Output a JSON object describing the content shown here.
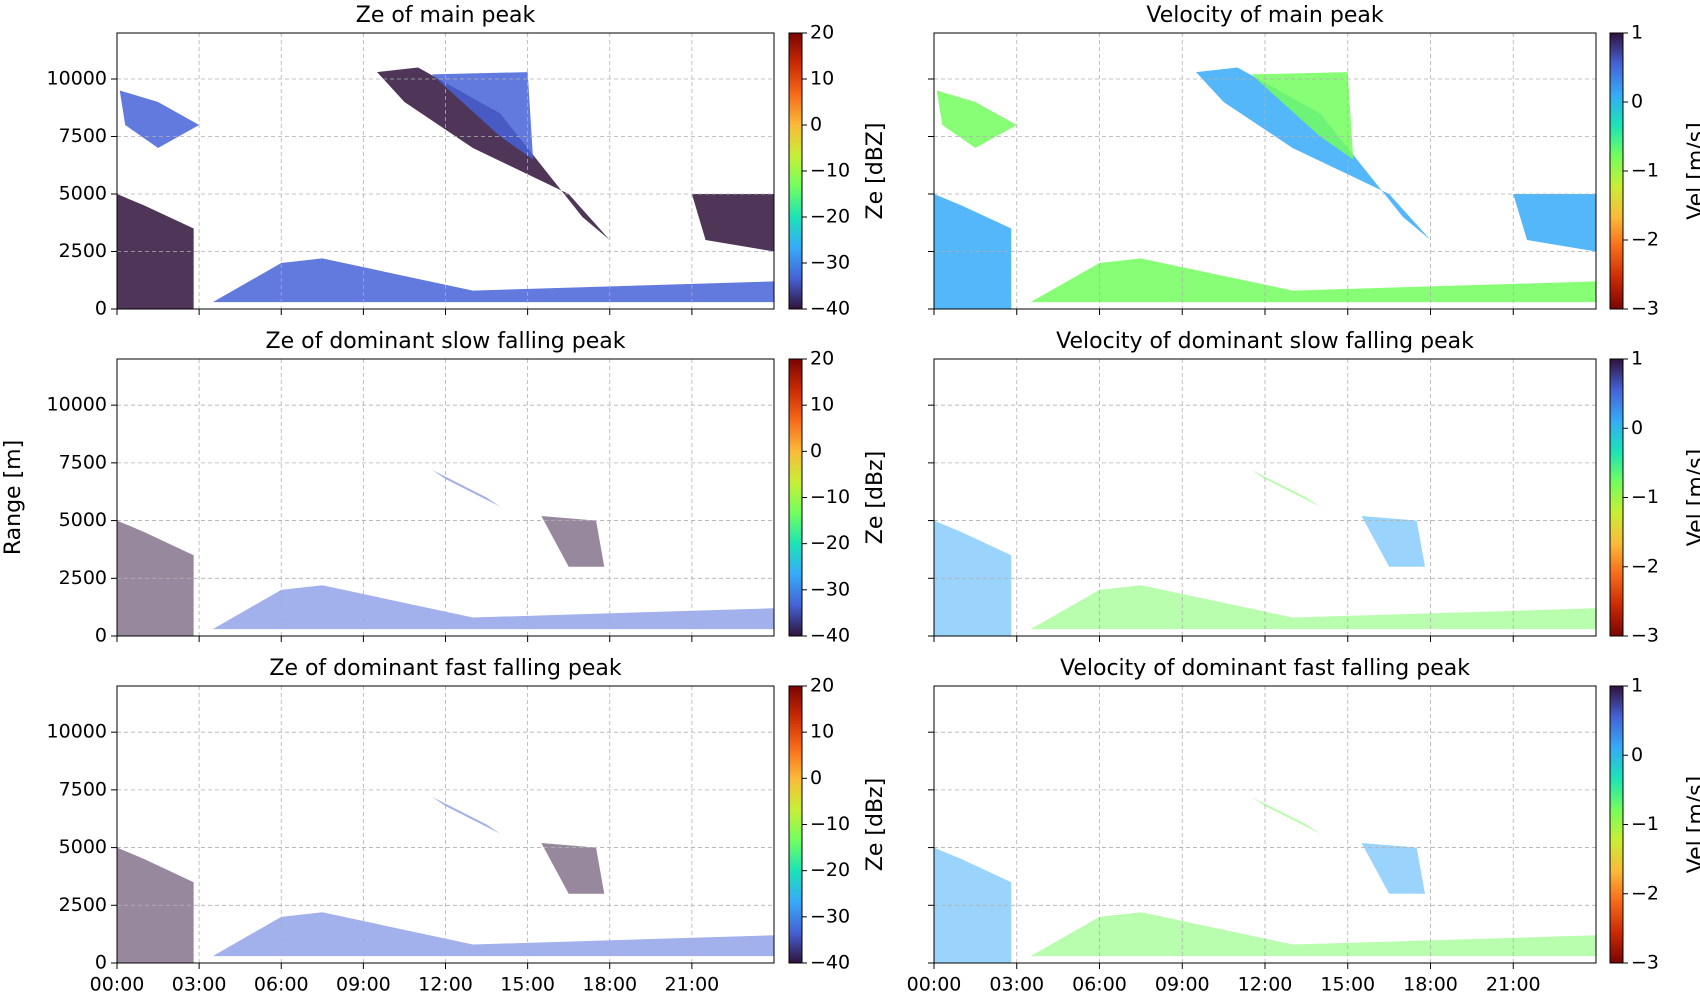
{
  "chart_data": [
    {
      "type": "heatmap",
      "title": "Ze of main peak",
      "colorbar_label": "Ze [dBZ]",
      "colormap": "turbo",
      "clim": [
        -40,
        20
      ],
      "cticks": [
        {
          "value": -40,
          "label": "−40"
        },
        {
          "value": -30,
          "label": "−30"
        },
        {
          "value": -20,
          "label": "−20"
        },
        {
          "value": -10,
          "label": "−10"
        },
        0,
        10,
        20
      ],
      "xlim": [
        0,
        24
      ],
      "xticks": [
        {
          "value": 0,
          "label": "00:00"
        },
        {
          "value": 3,
          "label": "03:00"
        },
        {
          "value": 6,
          "label": "06:00"
        },
        {
          "value": 9,
          "label": "09:00"
        },
        {
          "value": 12,
          "label": "12:00"
        },
        {
          "value": 15,
          "label": "15:00"
        },
        {
          "value": 18,
          "label": "18:00"
        },
        {
          "value": 21,
          "label": "21:00"
        }
      ],
      "xticklabels": false,
      "ylim": [
        0,
        12000
      ],
      "yticks": [
        0,
        2500,
        5000,
        7500,
        10000
      ],
      "yticklabels": true,
      "grid": true
    },
    {
      "type": "heatmap",
      "title": "Velocity of main peak",
      "colorbar_label": "Vel [m/s]",
      "colormap": "turbo_r",
      "clim": [
        -3,
        1
      ],
      "cticks": [
        {
          "value": -3,
          "label": "−3"
        },
        {
          "value": -2,
          "label": "−2"
        },
        {
          "value": -1,
          "label": "−1"
        },
        0,
        1
      ],
      "xlim": [
        0,
        24
      ],
      "xticks": [
        {
          "value": 0,
          "label": "00:00"
        },
        {
          "value": 3,
          "label": "03:00"
        },
        {
          "value": 6,
          "label": "06:00"
        },
        {
          "value": 9,
          "label": "09:00"
        },
        {
          "value": 12,
          "label": "12:00"
        },
        {
          "value": 15,
          "label": "15:00"
        },
        {
          "value": 18,
          "label": "18:00"
        },
        {
          "value": 21,
          "label": "21:00"
        }
      ],
      "xticklabels": false,
      "ylim": [
        0,
        12000
      ],
      "yticks": [
        0,
        2500,
        5000,
        7500,
        10000
      ],
      "yticklabels": false,
      "grid": true
    },
    {
      "type": "heatmap",
      "title": "Ze of dominant slow falling peak",
      "colorbar_label": "Ze [dBz]",
      "colormap": "turbo",
      "ylabel": "Range [m]",
      "clim": [
        -40,
        20
      ],
      "cticks": [
        {
          "value": -40,
          "label": "−40"
        },
        {
          "value": -30,
          "label": "−30"
        },
        {
          "value": -20,
          "label": "−20"
        },
        {
          "value": -10,
          "label": "−10"
        },
        0,
        10,
        20
      ],
      "xlim": [
        0,
        24
      ],
      "xticks": [
        {
          "value": 0,
          "label": "00:00"
        },
        {
          "value": 3,
          "label": "03:00"
        },
        {
          "value": 6,
          "label": "06:00"
        },
        {
          "value": 9,
          "label": "09:00"
        },
        {
          "value": 12,
          "label": "12:00"
        },
        {
          "value": 15,
          "label": "15:00"
        },
        {
          "value": 18,
          "label": "18:00"
        },
        {
          "value": 21,
          "label": "21:00"
        }
      ],
      "xticklabels": false,
      "ylim": [
        0,
        12000
      ],
      "yticks": [
        0,
        2500,
        5000,
        7500,
        10000
      ],
      "yticklabels": true,
      "grid": true
    },
    {
      "type": "heatmap",
      "title": "Velocity of dominant slow falling peak",
      "colorbar_label": "Vel [m/s]",
      "colormap": "turbo_r",
      "clim": [
        -3,
        1
      ],
      "cticks": [
        {
          "value": -3,
          "label": "−3"
        },
        {
          "value": -2,
          "label": "−2"
        },
        {
          "value": -1,
          "label": "−1"
        },
        0,
        1
      ],
      "xlim": [
        0,
        24
      ],
      "xticks": [
        {
          "value": 0,
          "label": "00:00"
        },
        {
          "value": 3,
          "label": "03:00"
        },
        {
          "value": 6,
          "label": "06:00"
        },
        {
          "value": 9,
          "label": "09:00"
        },
        {
          "value": 12,
          "label": "12:00"
        },
        {
          "value": 15,
          "label": "15:00"
        },
        {
          "value": 18,
          "label": "18:00"
        },
        {
          "value": 21,
          "label": "21:00"
        }
      ],
      "xticklabels": false,
      "ylim": [
        0,
        12000
      ],
      "yticks": [
        0,
        2500,
        5000,
        7500,
        10000
      ],
      "yticklabels": false,
      "grid": true
    },
    {
      "type": "heatmap",
      "title": "Ze of dominant fast falling peak",
      "colorbar_label": "Ze [dBz]",
      "colormap": "turbo",
      "clim": [
        -40,
        20
      ],
      "cticks": [
        {
          "value": -40,
          "label": "−40"
        },
        {
          "value": -30,
          "label": "−30"
        },
        {
          "value": -20,
          "label": "−20"
        },
        {
          "value": -10,
          "label": "−10"
        },
        0,
        10,
        20
      ],
      "xlim": [
        0,
        24
      ],
      "xticks": [
        {
          "value": 0,
          "label": "00:00"
        },
        {
          "value": 3,
          "label": "03:00"
        },
        {
          "value": 6,
          "label": "06:00"
        },
        {
          "value": 9,
          "label": "09:00"
        },
        {
          "value": 12,
          "label": "12:00"
        },
        {
          "value": 15,
          "label": "15:00"
        },
        {
          "value": 18,
          "label": "18:00"
        },
        {
          "value": 21,
          "label": "21:00"
        }
      ],
      "xticklabels": true,
      "ylim": [
        0,
        12000
      ],
      "yticks": [
        0,
        2500,
        5000,
        7500,
        10000
      ],
      "yticklabels": true,
      "grid": true
    },
    {
      "type": "heatmap",
      "title": "Velocity of dominant fast falling peak",
      "colorbar_label": "Vel [m/s]",
      "colormap": "turbo_r",
      "clim": [
        -3,
        1
      ],
      "cticks": [
        {
          "value": -3,
          "label": "−3"
        },
        {
          "value": -2,
          "label": "−2"
        },
        {
          "value": -1,
          "label": "−1"
        },
        0,
        1
      ],
      "xlim": [
        0,
        24
      ],
      "xticks": [
        {
          "value": 0,
          "label": "00:00"
        },
        {
          "value": 3,
          "label": "03:00"
        },
        {
          "value": 6,
          "label": "06:00"
        },
        {
          "value": 9,
          "label": "09:00"
        },
        {
          "value": 12,
          "label": "12:00"
        },
        {
          "value": 15,
          "label": "15:00"
        },
        {
          "value": 18,
          "label": "18:00"
        },
        {
          "value": 21,
          "label": "21:00"
        }
      ],
      "xticklabels": true,
      "ylim": [
        0,
        12000
      ],
      "yticks": [
        0,
        2500,
        5000,
        7500,
        10000
      ],
      "yticklabels": false,
      "grid": true
    }
  ]
}
